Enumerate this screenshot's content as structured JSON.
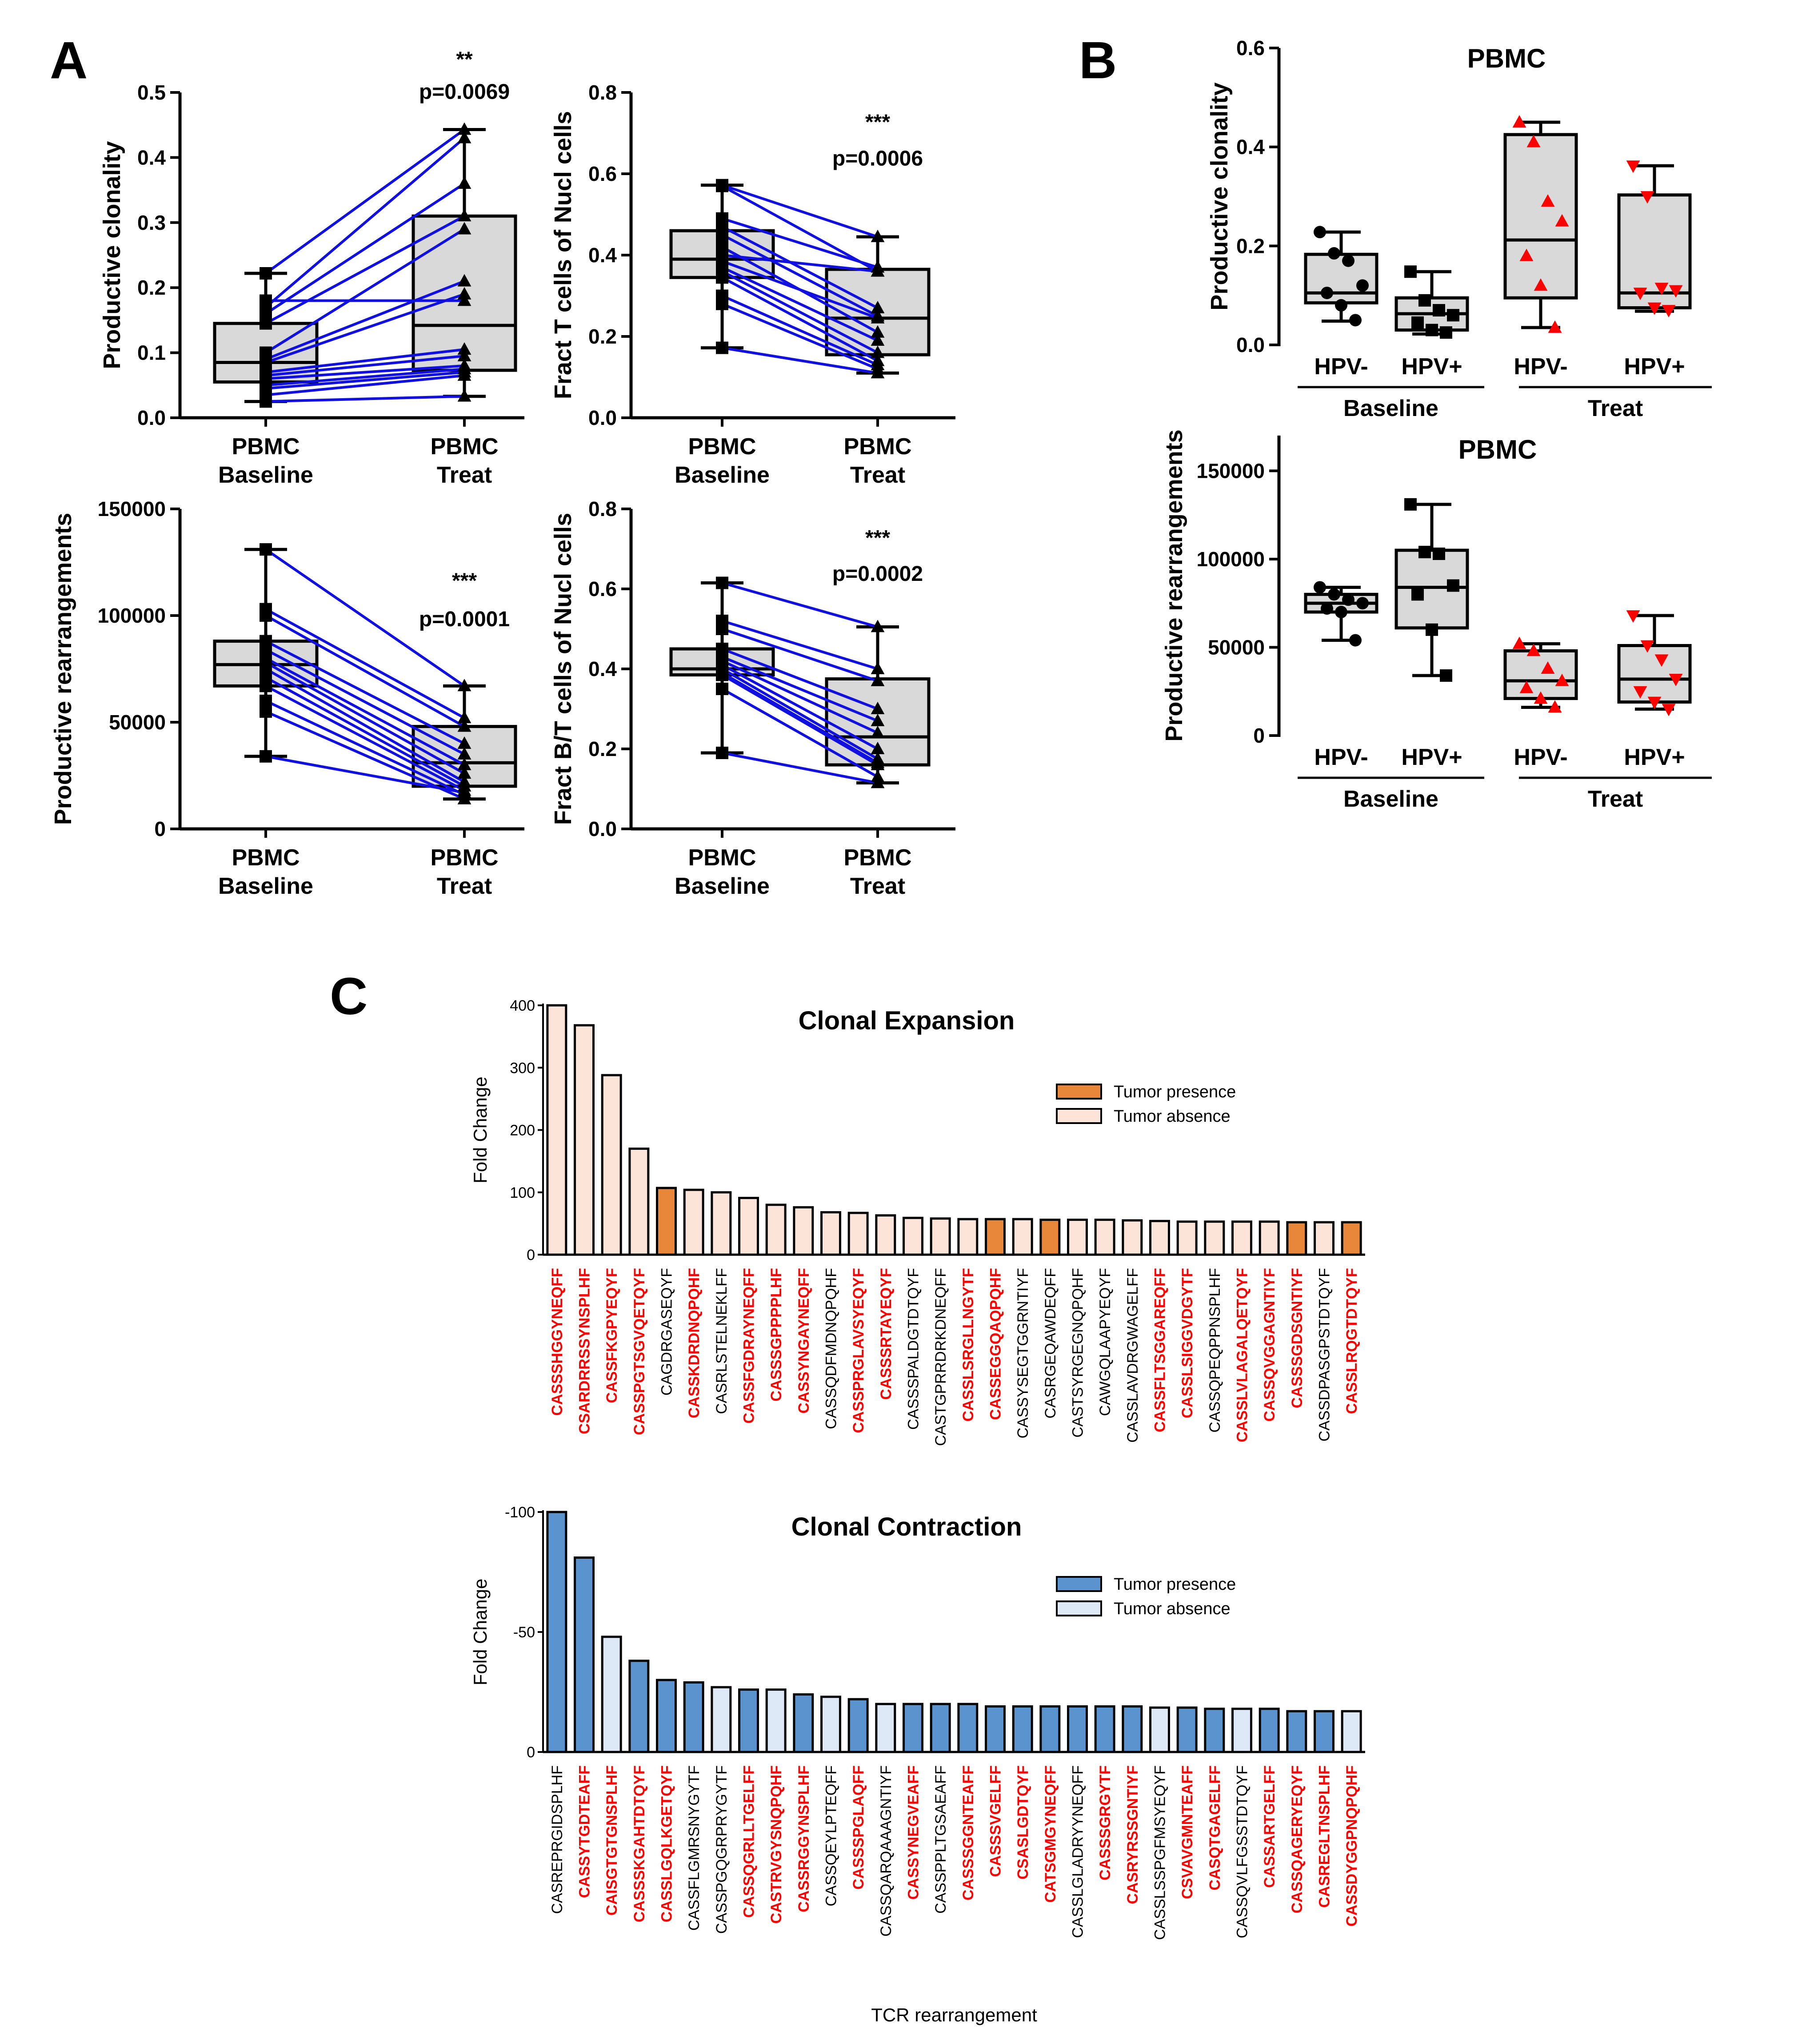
{
  "panel_letters": {
    "a": "A",
    "b": "B",
    "c": "C"
  },
  "colors": {
    "box_fill": "#d9d9d9",
    "line_blue": "#1010e0",
    "marker_black": "#000000",
    "marker_red": "#ff0000",
    "exp_presence": "#e8863a",
    "exp_absence": "#fde4d8",
    "con_presence": "#5b93cf",
    "con_absence": "#dde9f6",
    "seq_red": "#ff0000",
    "seq_black": "#000000"
  },
  "chart_data": [
    {
      "id": "A1",
      "type": "box-paired",
      "ylabel": "Productive clonality",
      "ylim": [
        0,
        0.5
      ],
      "yticks": [
        0.0,
        0.1,
        0.2,
        0.3,
        0.4,
        0.5
      ],
      "ytick_labels": [
        "0.0",
        "0.1",
        "0.2",
        "0.3",
        "0.4",
        "0.5"
      ],
      "groups": [
        {
          "line1": "PBMC",
          "line2": "Baseline",
          "min": 0.025,
          "q1": 0.055,
          "median": 0.085,
          "q3": 0.145,
          "max": 0.222,
          "marker": "square"
        },
        {
          "line1": "PBMC",
          "line2": "Treat",
          "min": 0.033,
          "q1": 0.073,
          "median": 0.142,
          "q3": 0.31,
          "max": 0.443,
          "marker": "triangle"
        }
      ],
      "pairs": [
        [
          0.222,
          0.443
        ],
        [
          0.17,
          0.43
        ],
        [
          0.16,
          0.36
        ],
        [
          0.145,
          0.31
        ],
        [
          0.18,
          0.18
        ],
        [
          0.1,
          0.29
        ],
        [
          0.09,
          0.21
        ],
        [
          0.085,
          0.19
        ],
        [
          0.07,
          0.105
        ],
        [
          0.065,
          0.095
        ],
        [
          0.06,
          0.08
        ],
        [
          0.05,
          0.075
        ],
        [
          0.045,
          0.07
        ],
        [
          0.035,
          0.065
        ],
        [
          0.025,
          0.033
        ]
      ],
      "sig_stars": "**",
      "sig_p": "p=0.0069",
      "sig_y": [
        0.54,
        0.49
      ]
    },
    {
      "id": "A2",
      "type": "box-paired",
      "ylabel": "Fract T cells of Nucl cells",
      "ylim": [
        0,
        0.8
      ],
      "yticks": [
        0.0,
        0.2,
        0.4,
        0.6,
        0.8
      ],
      "ytick_labels": [
        "0.0",
        "0.2",
        "0.4",
        "0.6",
        "0.8"
      ],
      "groups": [
        {
          "line1": "PBMC",
          "line2": "Baseline",
          "min": 0.172,
          "q1": 0.345,
          "median": 0.39,
          "q3": 0.46,
          "max": 0.572,
          "marker": "square"
        },
        {
          "line1": "PBMC",
          "line2": "Treat",
          "min": 0.11,
          "q1": 0.155,
          "median": 0.245,
          "q3": 0.365,
          "max": 0.445,
          "marker": "triangle"
        }
      ],
      "pairs": [
        [
          0.572,
          0.445
        ],
        [
          0.57,
          0.36
        ],
        [
          0.49,
          0.37
        ],
        [
          0.47,
          0.27
        ],
        [
          0.45,
          0.25
        ],
        [
          0.42,
          0.21
        ],
        [
          0.4,
          0.36
        ],
        [
          0.385,
          0.245
        ],
        [
          0.37,
          0.19
        ],
        [
          0.36,
          0.16
        ],
        [
          0.345,
          0.14
        ],
        [
          0.3,
          0.13
        ],
        [
          0.28,
          0.12
        ],
        [
          0.172,
          0.11
        ]
      ],
      "sig_stars": "***",
      "sig_p": "p=0.0006",
      "sig_y": [
        0.71,
        0.62
      ]
    },
    {
      "id": "A3",
      "type": "box-paired",
      "ylabel": "Productive rearrangements",
      "ylim": [
        0,
        150000
      ],
      "yticks": [
        0,
        50000,
        100000,
        150000
      ],
      "ytick_labels": [
        "0",
        "50000",
        "100000",
        "150000"
      ],
      "groups": [
        {
          "line1": "PBMC",
          "line2": "Baseline",
          "min": 34000,
          "q1": 67000,
          "median": 77000,
          "q3": 88000,
          "max": 131000,
          "marker": "square"
        },
        {
          "line1": "PBMC",
          "line2": "Treat",
          "min": 14000,
          "q1": 20000,
          "median": 31000,
          "q3": 48000,
          "max": 67000,
          "marker": "triangle"
        }
      ],
      "pairs": [
        [
          131000,
          67000
        ],
        [
          103000,
          52000
        ],
        [
          100000,
          48000
        ],
        [
          88000,
          40000
        ],
        [
          84000,
          35000
        ],
        [
          80000,
          30000
        ],
        [
          78000,
          26000
        ],
        [
          75000,
          22000
        ],
        [
          71000,
          20000
        ],
        [
          67000,
          18000
        ],
        [
          60000,
          16000
        ],
        [
          55000,
          14000
        ],
        [
          34000,
          17000
        ]
      ],
      "sig_stars": "***",
      "sig_p": "p=0.0001",
      "sig_y": [
        113000,
        95000
      ]
    },
    {
      "id": "A4",
      "type": "box-paired",
      "ylabel": "Fract B/T cells of Nucl cells",
      "ylim": [
        0,
        0.8
      ],
      "yticks": [
        0.0,
        0.2,
        0.4,
        0.6,
        0.8
      ],
      "ytick_labels": [
        "0.0",
        "0.2",
        "0.4",
        "0.6",
        "0.8"
      ],
      "groups": [
        {
          "line1": "PBMC",
          "line2": "Baseline",
          "min": 0.19,
          "q1": 0.385,
          "median": 0.4,
          "q3": 0.45,
          "max": 0.615,
          "marker": "square"
        },
        {
          "line1": "PBMC",
          "line2": "Treat",
          "min": 0.115,
          "q1": 0.16,
          "median": 0.23,
          "q3": 0.375,
          "max": 0.505,
          "marker": "triangle"
        }
      ],
      "pairs": [
        [
          0.615,
          0.505
        ],
        [
          0.52,
          0.4
        ],
        [
          0.5,
          0.37
        ],
        [
          0.45,
          0.3
        ],
        [
          0.43,
          0.27
        ],
        [
          0.42,
          0.24
        ],
        [
          0.41,
          0.2
        ],
        [
          0.4,
          0.175
        ],
        [
          0.39,
          0.165
        ],
        [
          0.385,
          0.16
        ],
        [
          0.35,
          0.13
        ],
        [
          0.19,
          0.115
        ]
      ],
      "sig_stars": "***",
      "sig_p": "p=0.0002",
      "sig_y": [
        0.71,
        0.62
      ]
    },
    {
      "id": "B1",
      "type": "box-grouped",
      "title": "PBMC",
      "ylabel": "Productive clonality",
      "ylim": [
        0,
        0.6
      ],
      "yticks": [
        0.0,
        0.2,
        0.4,
        0.6
      ],
      "ytick_labels": [
        "0.0",
        "0.2",
        "0.4",
        "0.6"
      ],
      "groups": [
        {
          "label": "HPV-",
          "min": 0.048,
          "q1": 0.085,
          "median": 0.105,
          "q3": 0.183,
          "max": 0.228,
          "marker": "circle",
          "color": "black",
          "points": [
            0.228,
            0.185,
            0.17,
            0.12,
            0.105,
            0.08,
            0.05
          ]
        },
        {
          "label": "HPV+",
          "min": 0.022,
          "q1": 0.03,
          "median": 0.063,
          "q3": 0.095,
          "max": 0.148,
          "marker": "square",
          "color": "black",
          "points": [
            0.148,
            0.09,
            0.07,
            0.06,
            0.045,
            0.03,
            0.025
          ]
        },
        {
          "label": "HPV-",
          "min": 0.035,
          "q1": 0.095,
          "median": 0.212,
          "q3": 0.425,
          "max": 0.45,
          "marker": "triangle",
          "color": "red",
          "points": [
            0.45,
            0.41,
            0.29,
            0.25,
            0.18,
            0.12,
            0.035
          ]
        },
        {
          "label": "HPV+",
          "min": 0.068,
          "q1": 0.075,
          "median": 0.105,
          "q3": 0.303,
          "max": 0.362,
          "marker": "triangle-down",
          "color": "red",
          "points": [
            0.362,
            0.3,
            0.115,
            0.11,
            0.105,
            0.075,
            0.07
          ]
        }
      ],
      "bracket_labels": [
        "Baseline",
        "Treat"
      ]
    },
    {
      "id": "B2",
      "type": "box-grouped",
      "title": "PBMC",
      "ylabel": "Productive rearrangements",
      "ylim": [
        0,
        170000
      ],
      "yticks": [
        0,
        50000,
        100000,
        150000
      ],
      "ytick_labels": [
        "0",
        "50000",
        "100000",
        "150000"
      ],
      "groups": [
        {
          "label": "HPV-",
          "min": 54000,
          "q1": 70000,
          "median": 75000,
          "q3": 80000,
          "max": 84000,
          "marker": "circle",
          "color": "black",
          "points": [
            84000,
            80000,
            77000,
            75000,
            72000,
            70000,
            54000
          ]
        },
        {
          "label": "HPV+",
          "min": 34000,
          "q1": 61000,
          "median": 84000,
          "q3": 105000,
          "max": 131000,
          "marker": "square",
          "color": "black",
          "points": [
            131000,
            104000,
            103000,
            85000,
            80000,
            60000,
            34000
          ]
        },
        {
          "label": "HPV-",
          "min": 16000,
          "q1": 21000,
          "median": 31000,
          "q3": 48000,
          "max": 52000,
          "marker": "triangle",
          "color": "red",
          "points": [
            52000,
            48000,
            38000,
            31000,
            27000,
            21000,
            16000
          ]
        },
        {
          "label": "HPV+",
          "min": 15000,
          "q1": 19000,
          "median": 32000,
          "q3": 51000,
          "max": 68000,
          "marker": "triangle-down",
          "color": "red",
          "points": [
            68000,
            51000,
            43000,
            32000,
            25000,
            19000,
            15000
          ]
        }
      ],
      "bracket_labels": [
        "Baseline",
        "Treat"
      ]
    },
    {
      "id": "C1",
      "type": "bar",
      "title": "Clonal Expansion",
      "ylabel": "Fold Change",
      "ylim": [
        0,
        400
      ],
      "yticks": [
        0,
        100,
        200,
        300,
        400
      ],
      "ytick_labels": [
        "0",
        "100",
        "200",
        "300",
        "400"
      ],
      "legend": [
        "Tumor presence",
        "Tumor absence"
      ],
      "categories": [
        "CASSSHGGYNEQFF",
        "CSARDRRSSYNSPLHF",
        "CASSFKGPYEQYF",
        "CASSPGTSGVQETQYF",
        "CAGDRGASEQYF",
        "CASSKDRDNQPQHF",
        "CASRLSTELNEKLFF",
        "CASSFGDRAYNEQFF",
        "CASSSGPPPPLHF",
        "CASSYNGAYNEQFF",
        "CASSQDFMDNQPQHF",
        "CASSPRGLAVSYEQYF",
        "CASSSRTAYEQYF",
        "CASSSPALDGTDTQYF",
        "CASTGPRRDRKDNEQFF",
        "CASSLSRGLLNGYTF",
        "CASSEGGQAQPQHF",
        "CASSYSEGTGGRNTIYF",
        "CASRGEQAWDEQFF",
        "CASTSYRGEGNQPQHF",
        "CAWGQLAAPYEQYF",
        "CASSLAVDRGWAGELFF",
        "CASSFLTSGGAREQFF",
        "CASSLSIGGVDGYTF",
        "CASSQPEQPPNSPLHF",
        "CASSLVLAGALQETQYF",
        "CASSQVGGAGNTIYF",
        "CASSSGDSGNTIYF",
        "CASSDPASGPSTDTQYF",
        "CASSLRQGTDTQYF"
      ],
      "values": [
        400,
        368,
        288,
        170,
        107,
        104,
        100,
        91,
        80,
        76,
        68,
        67,
        63,
        59,
        58,
        57,
        57,
        57,
        56,
        56,
        56,
        55,
        54,
        53,
        53,
        53,
        53,
        52,
        52,
        52
      ],
      "tumor_presence": [
        false,
        false,
        false,
        false,
        true,
        false,
        false,
        false,
        false,
        false,
        false,
        false,
        false,
        false,
        false,
        false,
        true,
        false,
        true,
        false,
        false,
        false,
        false,
        false,
        false,
        false,
        false,
        true,
        false,
        true
      ],
      "label_red": [
        true,
        true,
        true,
        true,
        false,
        true,
        false,
        true,
        true,
        true,
        false,
        true,
        true,
        false,
        false,
        true,
        true,
        false,
        false,
        false,
        false,
        false,
        true,
        true,
        false,
        true,
        true,
        true,
        false,
        true
      ]
    },
    {
      "id": "C2",
      "type": "bar",
      "title": "Clonal Contraction",
      "ylabel": "Fold Change",
      "xlabel": "TCR rearrangement",
      "ylim": [
        0,
        100
      ],
      "yticks": [
        0,
        50,
        100
      ],
      "ytick_labels": [
        "0",
        "-50",
        "-100"
      ],
      "legend": [
        "Tumor presence",
        "Tumor absence"
      ],
      "categories": [
        "CASREPRGIDSPLHF",
        "CASSYTGDTEAFF",
        "CAISGTGTGNSPLHF",
        "CASSSKGAHTDTQYF",
        "CASSLGQLKGETQYF",
        "CASSFLGMRSNYGYTF",
        "CASSPGQGRPRYGYTF",
        "CASSQGRLLTGELFF",
        "CASTRVGYSNQPQHF",
        "CASSRGGYNSPLHF",
        "CASSQEYLPTEQFF",
        "CASSSPGLAQFF",
        "CASSQARQAAAGNTIYF",
        "CASSYNEGVEAFF",
        "CASSPPLTGSAEAFF",
        "CASSSGGNTEAFF",
        "CASSSVGELFF",
        "CSASLGDTQYF",
        "CATSGMGYNEQFF",
        "CASSLGLADRYYNEQFF",
        "CASSSGRGYTF",
        "CASRYRSSGNTIYF",
        "CASSLSSPGFMSYEQYF",
        "CSVAVGMNTEAFF",
        "CASQTGAGELFF",
        "CASSQVLFGSSTDTQYF",
        "CASSARTGELFF",
        "CASSQAGERYEQYF",
        "CASREGLTNSPLHF",
        "CASSDYGGPNQPQHF"
      ],
      "values": [
        100,
        81,
        48,
        38,
        30,
        29,
        27,
        26,
        26,
        24,
        23,
        22,
        20,
        20,
        20,
        20,
        19,
        19,
        19,
        19,
        19,
        19,
        18.5,
        18.5,
        18,
        18,
        18,
        17,
        17,
        17
      ],
      "tumor_presence": [
        true,
        true,
        false,
        true,
        true,
        true,
        false,
        true,
        false,
        true,
        false,
        true,
        false,
        true,
        true,
        true,
        true,
        true,
        true,
        true,
        true,
        true,
        false,
        true,
        true,
        false,
        true,
        true,
        true,
        false
      ],
      "label_red": [
        false,
        true,
        true,
        true,
        true,
        false,
        false,
        true,
        true,
        true,
        false,
        true,
        false,
        true,
        false,
        true,
        true,
        true,
        true,
        false,
        true,
        true,
        false,
        true,
        true,
        false,
        true,
        true,
        true,
        true
      ]
    }
  ]
}
